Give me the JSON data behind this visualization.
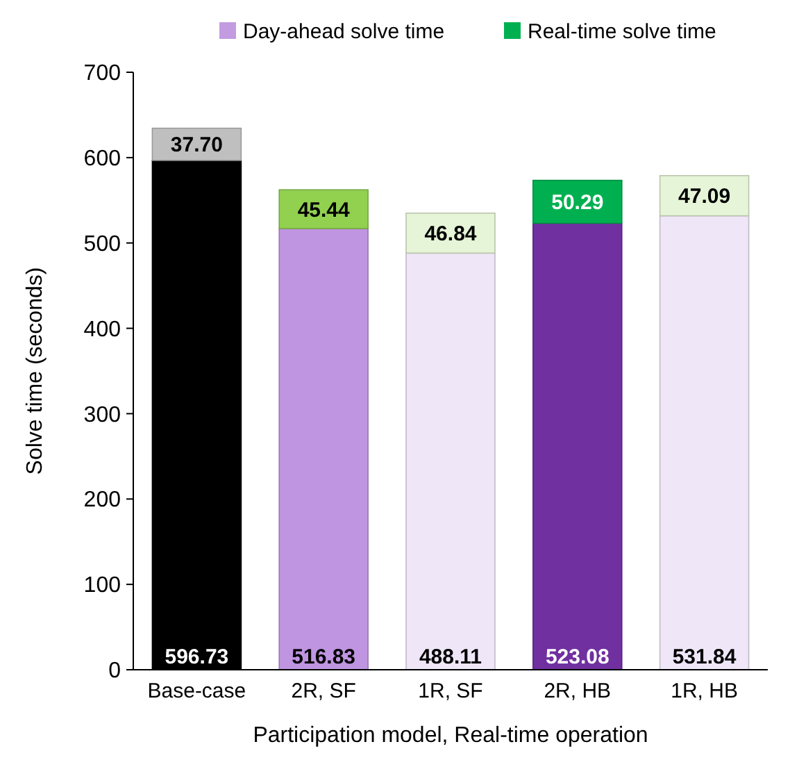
{
  "chart_data": {
    "type": "bar",
    "stacked": true,
    "xlabel": "Participation model, Real-time operation",
    "ylabel": "Solve time (seconds)",
    "categories": [
      "Base-case",
      "2R, SF",
      "1R, SF",
      "2R, HB",
      "1R, HB"
    ],
    "series": [
      {
        "name": "Day-ahead solve time",
        "color": "#c39be0",
        "colors": [
          "#000000",
          "#bf94e0",
          "#efe6f8",
          "#7030a0",
          "#efe6f8"
        ],
        "values": [
          596.73,
          516.83,
          488.11,
          523.08,
          531.84
        ],
        "value_labels": [
          "596.73",
          "516.83",
          "488.11",
          "523.08",
          "531.84"
        ]
      },
      {
        "name": "Real-time solve time",
        "color": "#00b050",
        "colors": [
          "#bfbfbf",
          "#92d050",
          "#e6f4d8",
          "#00b050",
          "#e6f4d8"
        ],
        "values": [
          37.7,
          45.44,
          46.84,
          50.29,
          47.09
        ],
        "value_labels": [
          "37.70",
          "45.44",
          "46.84",
          "50.29",
          "47.09"
        ]
      }
    ],
    "ylim": [
      0,
      700
    ],
    "yticks": [
      0,
      100,
      200,
      300,
      400,
      500,
      600,
      700
    ],
    "grid": false,
    "legend": "top",
    "data_labels": true
  }
}
